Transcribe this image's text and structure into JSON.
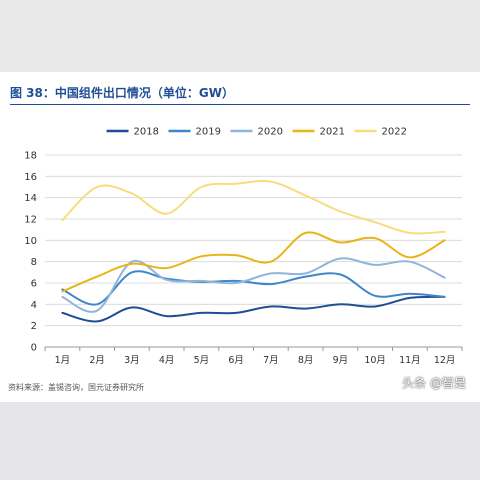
{
  "figure": {
    "title": "图 38：中国组件出口情况（单位：GW）",
    "source": "资料来源：盖锡咨询，国元证券研究所",
    "watermark": "头条 @智是"
  },
  "chart_data": {
    "type": "line",
    "title": "",
    "xlabel": "",
    "ylabel": "",
    "categories": [
      "1月",
      "2月",
      "3月",
      "4月",
      "5月",
      "6月",
      "7月",
      "8月",
      "9月",
      "10月",
      "11月",
      "12月"
    ],
    "ylim": [
      0,
      18
    ],
    "yticks": [
      0,
      2,
      4,
      6,
      8,
      10,
      12,
      14,
      16,
      18
    ],
    "grid": true,
    "legend_position": "top",
    "series": [
      {
        "name": "2018",
        "color": "#1f4e96",
        "values": [
          3.2,
          2.4,
          3.7,
          2.9,
          3.2,
          3.2,
          3.8,
          3.6,
          4.0,
          3.8,
          4.6,
          4.7
        ]
      },
      {
        "name": "2019",
        "color": "#3f86c8",
        "values": [
          5.4,
          4.0,
          7.0,
          6.4,
          6.1,
          6.2,
          5.9,
          6.6,
          6.8,
          4.8,
          5.0,
          4.7
        ]
      },
      {
        "name": "2020",
        "color": "#8fb5dc",
        "values": [
          4.7,
          3.4,
          8.0,
          6.3,
          6.2,
          6.0,
          6.9,
          6.9,
          8.3,
          7.7,
          8.0,
          6.5
        ]
      },
      {
        "name": "2021",
        "color": "#e8b416",
        "values": [
          5.2,
          6.6,
          7.8,
          7.4,
          8.5,
          8.6,
          8.0,
          10.7,
          9.8,
          10.2,
          8.4,
          10.0
        ]
      },
      {
        "name": "2022",
        "color": "#f9dc7a",
        "values": [
          11.9,
          15.0,
          14.4,
          12.5,
          15.0,
          15.3,
          15.5,
          14.2,
          12.7,
          11.7,
          10.7,
          10.8
        ]
      }
    ]
  }
}
